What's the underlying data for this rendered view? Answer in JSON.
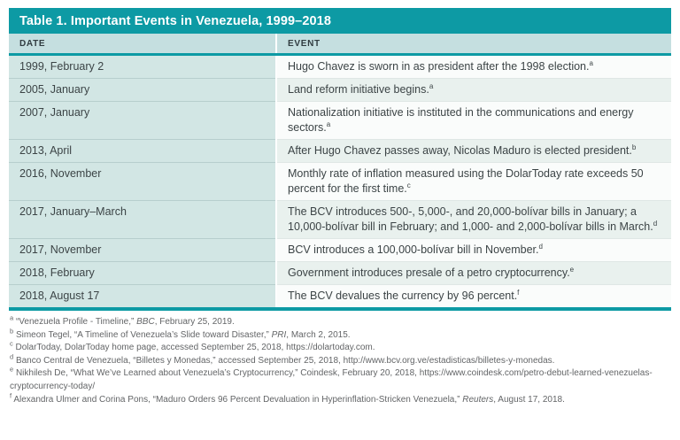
{
  "table": {
    "title": "Table 1. Important Events in Venezuela, 1999–2018",
    "columns": [
      "DATE",
      "EVENT"
    ],
    "rows": [
      {
        "date": "1999, February 2",
        "event": "Hugo Chavez is sworn in as president after the 1998 election.",
        "note": "a"
      },
      {
        "date": "2005, January",
        "event": "Land reform initiative begins.",
        "note": "a"
      },
      {
        "date": "2007, January",
        "event": "Nationalization initiative is instituted in the communications and energy sectors.",
        "note": "a"
      },
      {
        "date": "2013, April",
        "event": "After Hugo Chavez passes away, Nicolas Maduro is elected president.",
        "note": "b"
      },
      {
        "date": "2016, November",
        "event": "Monthly rate of inflation measured using the DolarToday rate exceeds 50 percent for the first time.",
        "note": "c"
      },
      {
        "date": "2017, January–March",
        "event": "The BCV introduces 500-, 5,000-, and 20,000-bolívar bills in January; a 10,000-bolívar bill in February; and 1,000- and 2,000-bolívar bills in March.",
        "note": "d"
      },
      {
        "date": "2017, November",
        "event": "BCV introduces a 100,000-bolívar bill in November.",
        "note": "d"
      },
      {
        "date": "2018, February",
        "event": "Government introduces presale of a petro cryptocurrency.",
        "note": "e"
      },
      {
        "date": "2018, August 17",
        "event": "The BCV devalues the currency by 96 percent.",
        "note": "f"
      }
    ]
  },
  "footnotes": [
    {
      "marker": "a",
      "before": "“Venezuela Profile - Timeline,” ",
      "italic": "BBC",
      "after": ", February 25, 2019."
    },
    {
      "marker": "b",
      "before": "Simeon Tegel, “A Timeline of Venezuela’s Slide toward Disaster,” ",
      "italic": "PRI",
      "after": ", March 2, 2015."
    },
    {
      "marker": "c",
      "before": "DolarToday, DolarToday home page, accessed September 25, 2018, https://dolartoday.com.",
      "italic": "",
      "after": ""
    },
    {
      "marker": "d",
      "before": "Banco Central de Venezuela, “Billetes y Monedas,” accessed September 25, 2018, http://www.bcv.org.ve/estadisticas/billetes-y-monedas.",
      "italic": "",
      "after": ""
    },
    {
      "marker": "e",
      "before": "Nikhilesh De, “What We’ve Learned about Venezuela’s Cryptocurrency,” Coindesk, February 20, 2018, https://www.coindesk.com/petro-debut-learned-venezuelas-cryptocurrency-today/",
      "italic": "",
      "after": ""
    },
    {
      "marker": "f",
      "before": "Alexandra Ulmer and Corina Pons, “Maduro Orders 96 Percent Devaluation in Hyperinflation-Stricken Venezuela,” ",
      "italic": "Reuters",
      "after": ", August 17, 2018."
    }
  ],
  "colors": {
    "teal": "#0d9aa4",
    "header-bg": "#c5dfe0",
    "date-cell-bg": "#d2e6e4",
    "event-row-odd": "#fafcfb",
    "event-row-even": "#e9f1ee",
    "title-text": "#ffffff",
    "header-text": "#303c40",
    "cell-text": "#3c4446",
    "footnote-text": "#636567"
  }
}
